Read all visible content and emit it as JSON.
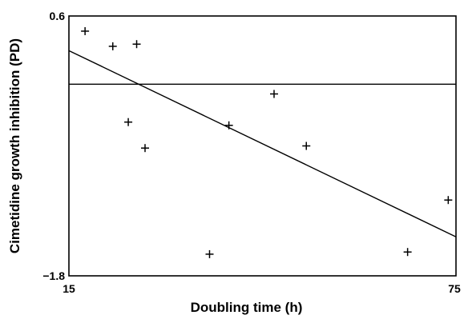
{
  "chart_data": {
    "type": "scatter",
    "xlabel": "Doubling time (h)",
    "ylabel": "Cimetidine growth inhibition (PD)",
    "xlim": [
      15,
      75
    ],
    "ylim": [
      -1.8,
      0.6
    ],
    "x_ticks": [
      "15",
      "75"
    ],
    "y_ticks": [
      "0.6",
      "−1.8"
    ],
    "grid": false,
    "points": [
      {
        "x": 17.5,
        "y": 0.46
      },
      {
        "x": 21.8,
        "y": 0.32
      },
      {
        "x": 24.2,
        "y": -0.38
      },
      {
        "x": 25.5,
        "y": 0.34
      },
      {
        "x": 26.8,
        "y": -0.62
      },
      {
        "x": 36.8,
        "y": -1.6
      },
      {
        "x": 39.8,
        "y": -0.41
      },
      {
        "x": 46.8,
        "y": -0.12
      },
      {
        "x": 51.8,
        "y": -0.6
      },
      {
        "x": 67.5,
        "y": -1.58
      },
      {
        "x": 73.8,
        "y": -1.1
      }
    ],
    "regression_line": {
      "x": [
        15,
        75
      ],
      "y": [
        0.28,
        -1.44
      ]
    },
    "reference_line": {
      "y": -0.03
    }
  }
}
